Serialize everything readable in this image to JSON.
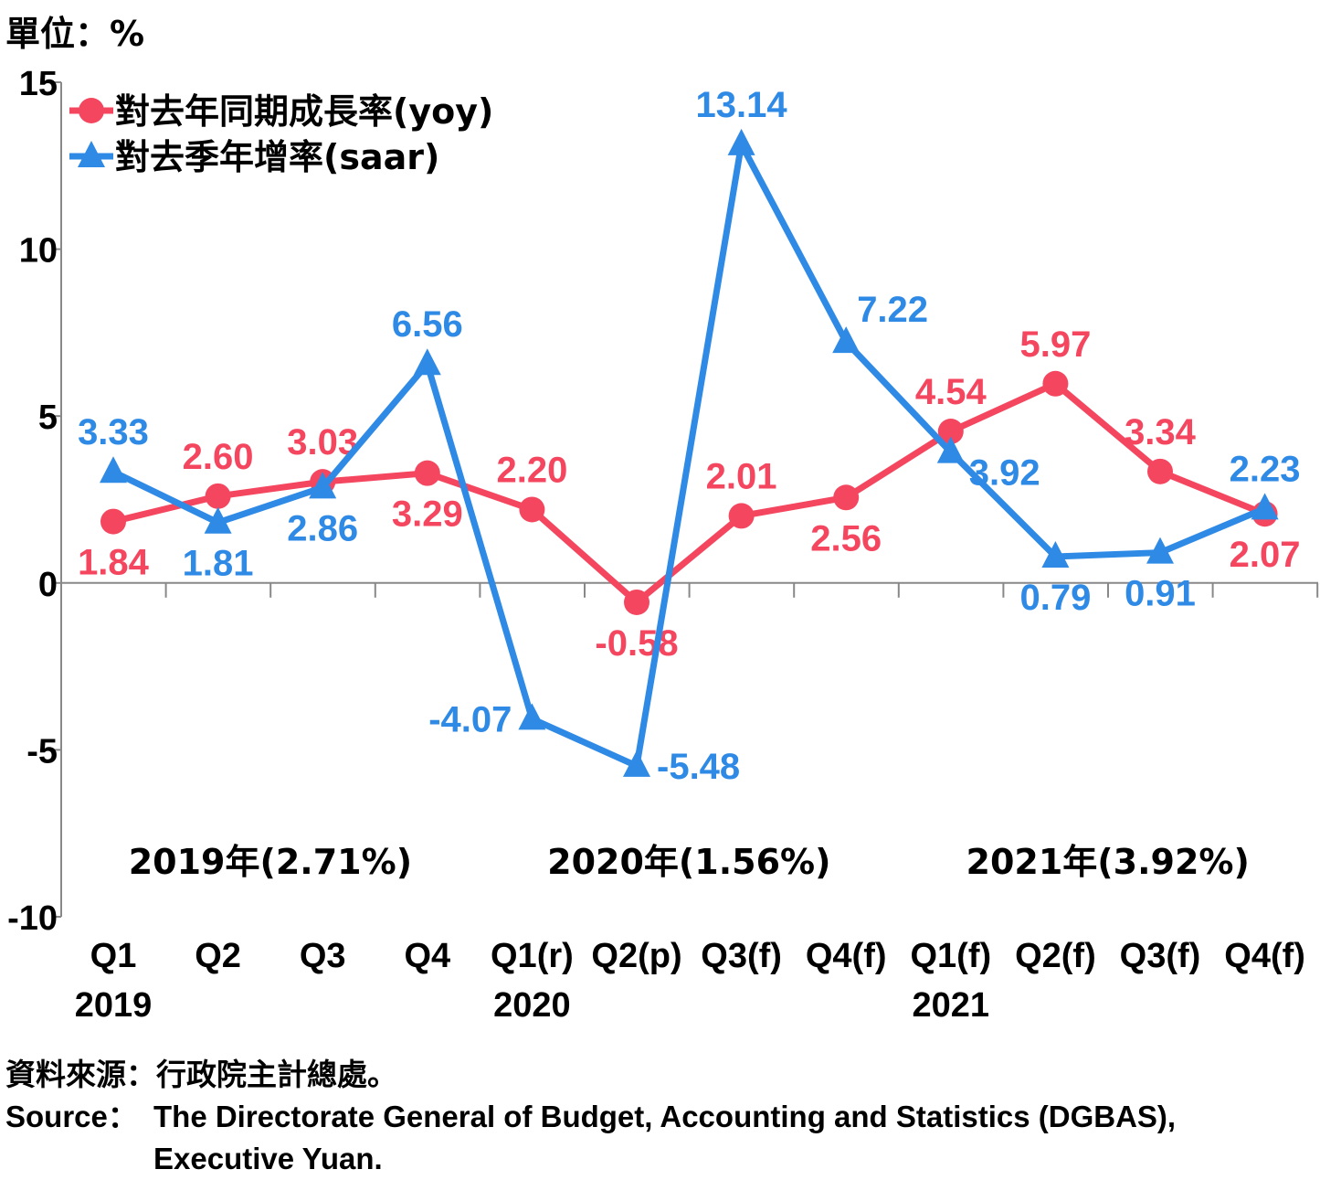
{
  "unit_label": "單位：%",
  "source": {
    "zh_label": "資料來源：",
    "zh_text": "行政院主計總處。",
    "en_label": "Source：",
    "en_text_line1": "The Directorate General of Budget, Accounting and Statistics (DGBAS),",
    "en_text_line2": "Executive Yuan."
  },
  "chart_data": {
    "type": "line",
    "ylim": [
      -10,
      15
    ],
    "yticks": [
      "15",
      "10",
      "5",
      "0",
      "-5",
      "-10"
    ],
    "categories": [
      "Q1",
      "Q2",
      "Q3",
      "Q4",
      "Q1(r)",
      "Q2(p)",
      "Q3(f)",
      "Q4(f)",
      "Q1(f)",
      "Q2(f)",
      "Q3(f)",
      "Q4(f)"
    ],
    "year_labels": [
      {
        "label": "2019",
        "at_index": 0
      },
      {
        "label": "2020",
        "at_index": 4
      },
      {
        "label": "2021",
        "at_index": 8
      }
    ],
    "annual_labels": [
      {
        "label": "2019年(2.71%)",
        "center_index": 1.5
      },
      {
        "label": "2020年(1.56%)",
        "center_index": 5.5
      },
      {
        "label": "2021年(3.92%)",
        "center_index": 9.5
      }
    ],
    "grid": false,
    "legend_position": "top-left",
    "series": [
      {
        "name": "對去年同期成長率(yoy)",
        "color": "#f4475f",
        "marker": "circle",
        "values": [
          1.84,
          2.6,
          3.03,
          3.29,
          2.2,
          -0.58,
          2.01,
          2.56,
          4.54,
          5.97,
          3.34,
          2.07
        ],
        "labels": [
          "1.84",
          "2.60",
          "3.03",
          "3.29",
          "2.20",
          "-0.58",
          "2.01",
          "2.56",
          "4.54",
          "5.97",
          "3.34",
          "2.07"
        ],
        "label_pos": [
          "below",
          "above",
          "above",
          "below",
          "above",
          "below",
          "above",
          "below",
          "above",
          "above",
          "above",
          "below"
        ]
      },
      {
        "name": "對去季年增率(saar)",
        "color": "#2f8ae6",
        "marker": "triangle",
        "values": [
          3.33,
          1.81,
          2.86,
          6.56,
          -4.07,
          -5.48,
          13.14,
          7.22,
          3.92,
          0.79,
          0.91,
          2.23
        ],
        "labels": [
          "3.33",
          "1.81",
          "2.86",
          "6.56",
          "-4.07",
          "-5.48",
          "13.14",
          "7.22",
          "3.92",
          "0.79",
          "0.91",
          "2.23"
        ],
        "label_pos": [
          "above",
          "below",
          "below",
          "above",
          "left",
          "right",
          "above",
          "above-right",
          "below-right",
          "below",
          "below",
          "above"
        ]
      }
    ]
  }
}
